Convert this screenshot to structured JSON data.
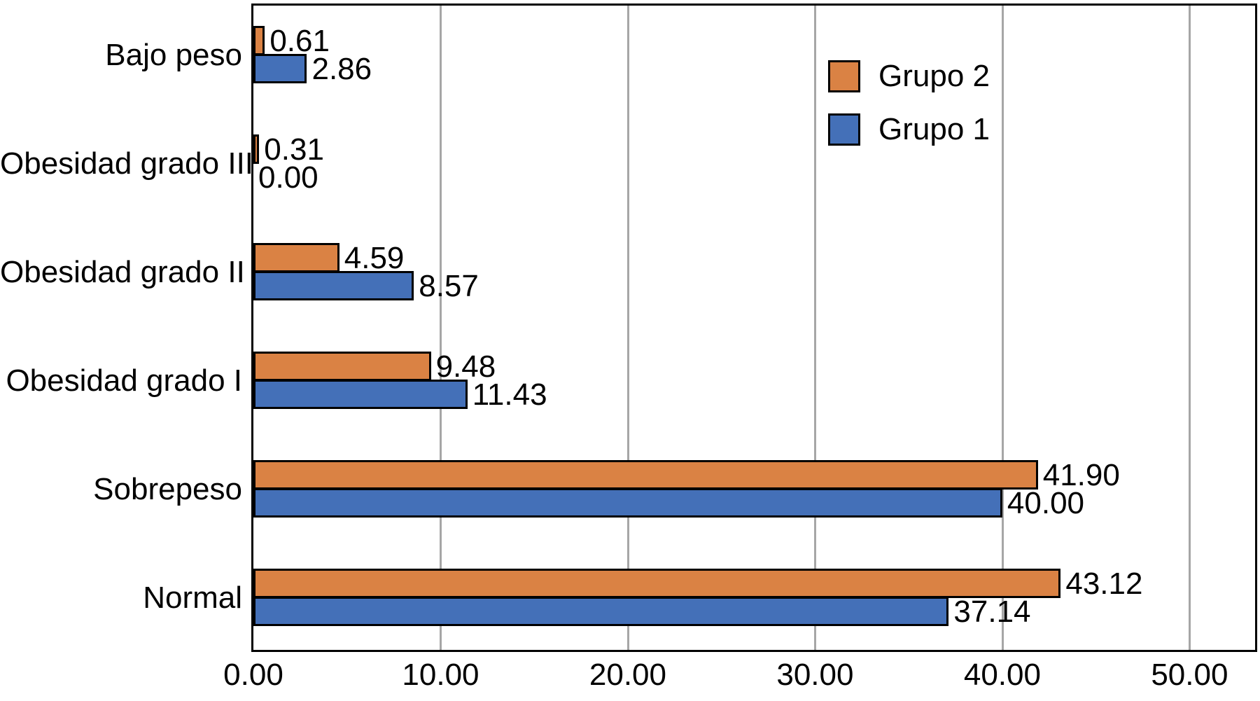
{
  "chart_data": {
    "type": "bar",
    "orientation": "horizontal",
    "title": "",
    "categories": [
      "Bajo peso",
      "Obesidad grado III",
      "Obesidad grado II",
      "Obesidad grado I",
      "Sobrepeso",
      "Normal"
    ],
    "series": [
      {
        "name": "Grupo 2",
        "color": "#DA8244",
        "values": [
          0.61,
          0.31,
          4.59,
          9.48,
          41.9,
          43.12
        ],
        "labels": [
          "0.61",
          "0.31",
          "4.59",
          "9.48",
          "41.90",
          "43.12"
        ]
      },
      {
        "name": "Grupo 1",
        "color": "#4470B8",
        "values": [
          2.86,
          0.0,
          8.57,
          11.43,
          40.0,
          37.14
        ],
        "labels": [
          "2.86",
          "0.00",
          "8.57",
          "11.43",
          "40.00",
          "37.14"
        ]
      }
    ],
    "x_ticks": [
      {
        "value": 0,
        "label": "0.00"
      },
      {
        "value": 10,
        "label": "10.00"
      },
      {
        "value": 20,
        "label": "20.00"
      },
      {
        "value": 30,
        "label": "30.00"
      },
      {
        "value": 40,
        "label": "40.00"
      },
      {
        "value": 50,
        "label": "50.00"
      }
    ],
    "xlim": [
      0,
      53.5
    ],
    "grid": "vertical",
    "gridline_color": "#A6A6A6",
    "bar_border_color": "#000000",
    "text_color": "#000000",
    "legend": {
      "position": "top-right-inside",
      "order": [
        "Grupo 2",
        "Grupo 1"
      ]
    }
  }
}
